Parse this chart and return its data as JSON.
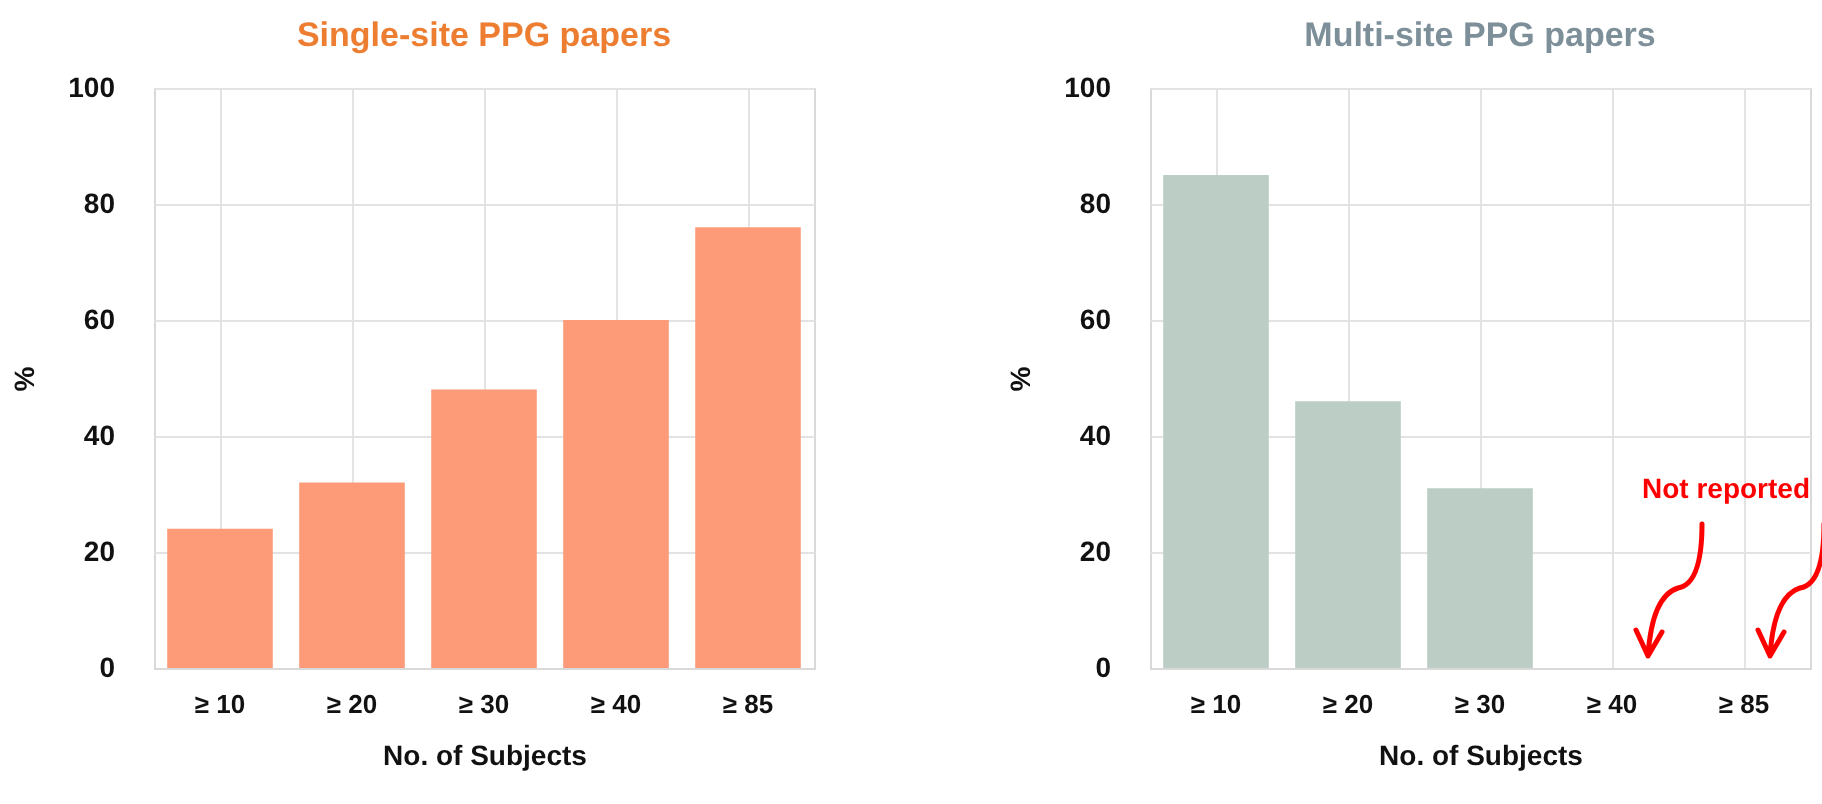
{
  "chart_data": [
    {
      "type": "bar",
      "title": "Single-site PPG papers",
      "xlabel": "No. of Subjects",
      "ylabel": "%",
      "categories": [
        "≥ 10",
        "≥ 20",
        "≥ 30",
        "≥ 40",
        "≥ 85"
      ],
      "values": [
        24,
        32,
        48,
        60,
        76
      ],
      "color": "#fd9b79",
      "ylim": [
        0,
        100
      ],
      "yticks": [
        0,
        20,
        40,
        60,
        80,
        100
      ],
      "grid": true
    },
    {
      "type": "bar",
      "title": "Multi-site PPG papers",
      "xlabel": "No. of Subjects",
      "ylabel": "%",
      "categories": [
        "≥ 10",
        "≥ 20",
        "≥ 30",
        "≥ 40",
        "≥ 85"
      ],
      "values": [
        85,
        46,
        31,
        null,
        null
      ],
      "color": "#bccdc6",
      "ylim": [
        0,
        100
      ],
      "yticks": [
        0,
        20,
        40,
        60,
        80,
        100
      ],
      "grid": true,
      "annotations": [
        "Not reported"
      ]
    }
  ]
}
